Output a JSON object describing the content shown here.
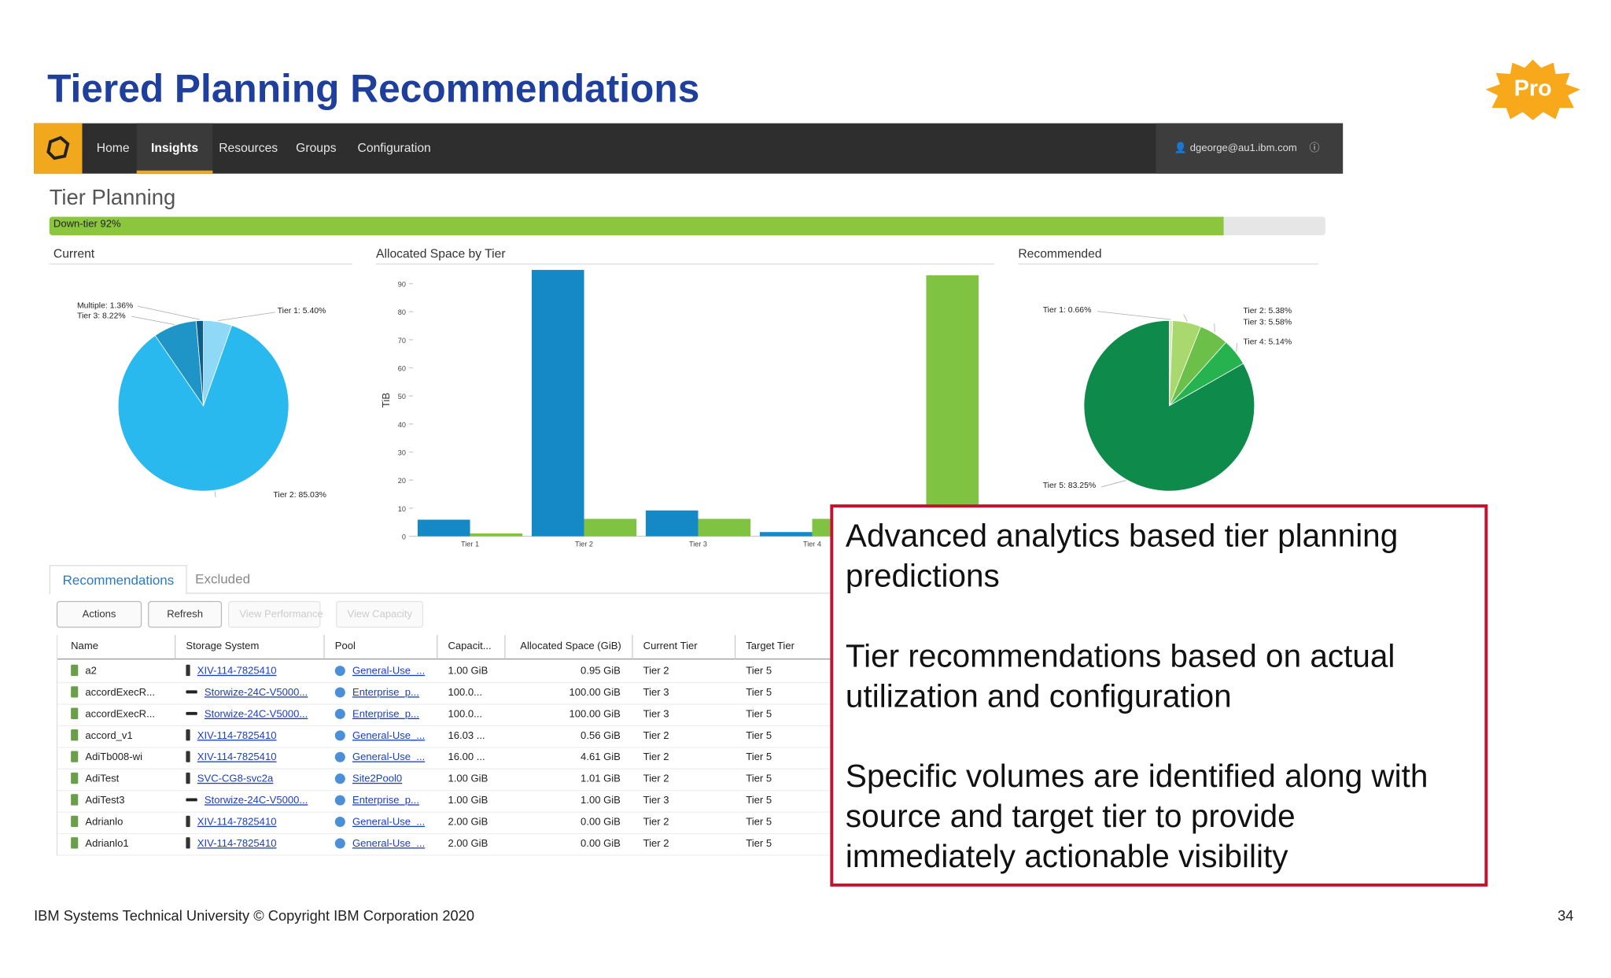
{
  "slide": {
    "title": "Tiered Planning Recommendations",
    "badge": "Pro",
    "footer": "IBM Systems Technical University  © Copyright IBM Corporation 2020",
    "page_number": "34"
  },
  "nav": {
    "items": [
      "Home",
      "Insights",
      "Resources",
      "Groups",
      "Configuration"
    ],
    "user": "dgeorge@au1.ibm.com"
  },
  "page": {
    "title": "Tier Planning",
    "progress": {
      "value": 92,
      "label": "Down-tier 92%"
    }
  },
  "charts": [
    {
      "type": "pie",
      "title": "Current",
      "categories": [
        "Tier 1",
        "Tier 2",
        "Tier 3",
        "Multiple"
      ],
      "values": [
        5.4,
        85.03,
        8.22,
        1.36
      ],
      "value_labels": [
        "Tier 1: 5.40%",
        "Tier 2: 85.03%",
        "Tier 3: 8.22%",
        "Multiple: 1.36%"
      ],
      "colors": [
        "#8fd8f6",
        "#29b9ef",
        "#1e95c6",
        "#0e5d8a"
      ]
    },
    {
      "type": "bar",
      "title": "Allocated Space by Tier",
      "y_label": "TiB",
      "categories": [
        "Tier 1",
        "Tier 2",
        "Tier 3",
        "Tier 4",
        null
      ],
      "series": [
        {
          "color": "#1589c5",
          "values": [
            5.9,
            94.9,
            9.2,
            1.5,
            null
          ]
        },
        {
          "color": "#80c342",
          "values": [
            1,
            6.2,
            6.2,
            6.2,
            93
          ]
        }
      ],
      "ylim": [
        0,
        97
      ],
      "yticks": [
        0,
        10,
        20,
        30,
        40,
        50,
        60,
        70,
        80,
        90
      ]
    },
    {
      "type": "pie",
      "title": "Recommended",
      "categories": [
        "Tier 1",
        "Tier 2",
        "Tier 3",
        "Tier 4",
        "Tier 5"
      ],
      "values": [
        0.66,
        5.38,
        5.58,
        5.14,
        83.25
      ],
      "value_labels": [
        "Tier 1: 0.66%",
        "Tier 2: 5.38%",
        "Tier 3: 5.58%",
        "Tier 4: 5.14%",
        "Tier 5: 83.25%"
      ],
      "colors": [
        "#d6ecb6",
        "#a9d86e",
        "#6cc04a",
        "#26b34f",
        "#0e8a4b"
      ]
    }
  ],
  "tabs": [
    "Recommendations",
    "Excluded"
  ],
  "toolbar": [
    "Actions",
    "Refresh",
    "View Performance",
    "View Capacity"
  ],
  "table": {
    "columns": [
      "Name",
      "Storage System",
      "Pool",
      "Capacit...",
      "Allocated Space (GiB)",
      "Current Tier",
      "Target Tier"
    ],
    "rows": [
      [
        "a2",
        "XIV-114-7825410",
        "General-Use_...",
        "1.00 GiB",
        "0.95 GiB",
        "Tier 2",
        "Tier 5"
      ],
      [
        "accordExecR...",
        "Storwize-24C-V5000...",
        "Enterprise_p...",
        "100.0...",
        "100.00 GiB",
        "Tier 3",
        "Tier 5"
      ],
      [
        "accordExecR...",
        "Storwize-24C-V5000...",
        "Enterprise_p...",
        "100.0...",
        "100.00 GiB",
        "Tier 3",
        "Tier 5"
      ],
      [
        "accord_v1",
        "XIV-114-7825410",
        "General-Use_...",
        "16.03 ...",
        "0.56 GiB",
        "Tier 2",
        "Tier 5"
      ],
      [
        "AdiTb008-wi",
        "XIV-114-7825410",
        "General-Use_...",
        "16.00 ...",
        "4.61 GiB",
        "Tier 2",
        "Tier 5"
      ],
      [
        "AdiTest",
        "SVC-CG8-svc2a",
        "Site2Pool0",
        "1.00 GiB",
        "1.01 GiB",
        "Tier 2",
        "Tier 5"
      ],
      [
        "AdiTest3",
        "Storwize-24C-V5000...",
        "Enterprise_p...",
        "1.00 GiB",
        "1.00 GiB",
        "Tier 3",
        "Tier 5"
      ],
      [
        "Adrianlo",
        "XIV-114-7825410",
        "General-Use_...",
        "2.00 GiB",
        "0.00 GiB",
        "Tier 2",
        "Tier 5"
      ],
      [
        "Adrianlo1",
        "XIV-114-7825410",
        "General-Use_...",
        "2.00 GiB",
        "0.00 GiB",
        "Tier 2",
        "Tier 5"
      ]
    ]
  },
  "callout": [
    "Advanced analytics based tier planning predictions",
    "Tier recommendations based on actual utilization and configuration",
    "Specific volumes are identified along with source and target tier to provide immediately actionable visibility"
  ]
}
